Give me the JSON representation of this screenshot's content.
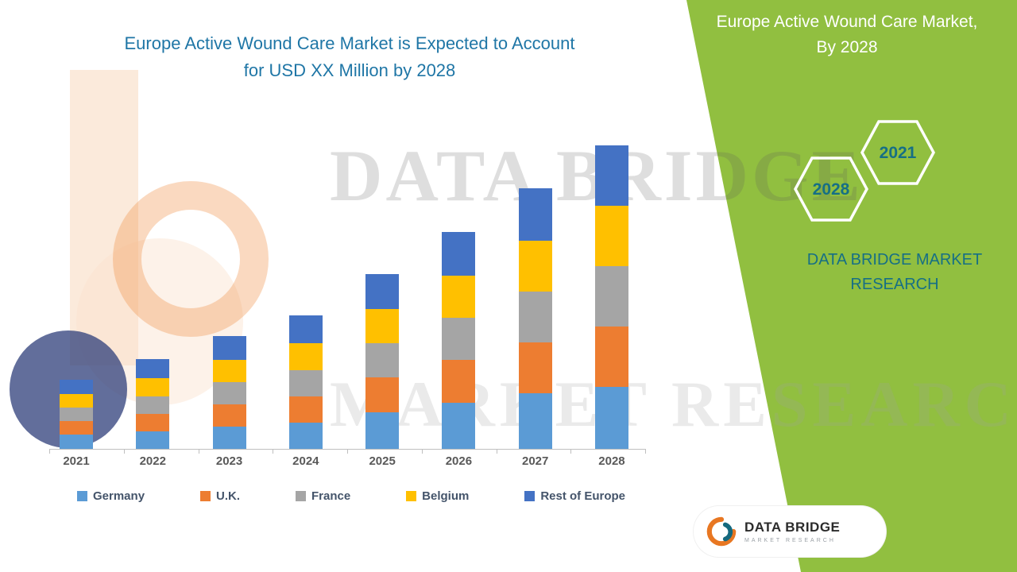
{
  "theme": {
    "panel_green": "#91BF40",
    "title_teal": "#1F76A6",
    "brand_teal": "#166F85",
    "axis_label": "#595959",
    "legend_label": "#44546A"
  },
  "header": {
    "main_title_line1": "Europe Active Wound Care Market is Expected to Account",
    "main_title_line2": "for USD XX Million by 2028"
  },
  "side_panel": {
    "title_line1": "Europe Active Wound Care Market,",
    "title_line2": "By 2028",
    "hexagon_back_year": "2028",
    "hexagon_front_year": "2021",
    "brand_line1": "DATA BRIDGE MARKET",
    "brand_line2": "RESEARCH"
  },
  "watermark": {
    "line1": "DATA BRIDGE",
    "line2": "MARKET RESEARCH"
  },
  "logo_card": {
    "title": "DATA BRIDGE",
    "subtitle": "MARKET RESEARCH"
  },
  "chart_data": {
    "type": "bar",
    "stacked": true,
    "title": "Europe Active Wound Care Market is Expected to Account for USD XX Million by 2028",
    "categories": [
      "2021",
      "2022",
      "2023",
      "2024",
      "2025",
      "2026",
      "2027",
      "2028"
    ],
    "series": [
      {
        "name": "Germany",
        "color": "#5B9BD5",
        "values": [
          18,
          22,
          28,
          33,
          46,
          58,
          70,
          78
        ]
      },
      {
        "name": "U.K.",
        "color": "#ED7D31",
        "values": [
          17,
          22,
          28,
          33,
          44,
          54,
          64,
          76
        ]
      },
      {
        "name": "France",
        "color": "#A5A5A5",
        "values": [
          17,
          22,
          28,
          33,
          43,
          53,
          64,
          76
        ]
      },
      {
        "name": "Belgium",
        "color": "#FFC000",
        "values": [
          17,
          23,
          28,
          34,
          43,
          53,
          64,
          76
        ]
      },
      {
        "name": "Rest of Europe",
        "color": "#4472C4",
        "values": [
          18,
          24,
          30,
          35,
          44,
          55,
          66,
          76
        ]
      }
    ],
    "xlabel": "",
    "ylabel": "",
    "ylim": [
      0,
      395
    ],
    "y_axis_visible": false,
    "grid": false,
    "legend_position": "bottom"
  }
}
